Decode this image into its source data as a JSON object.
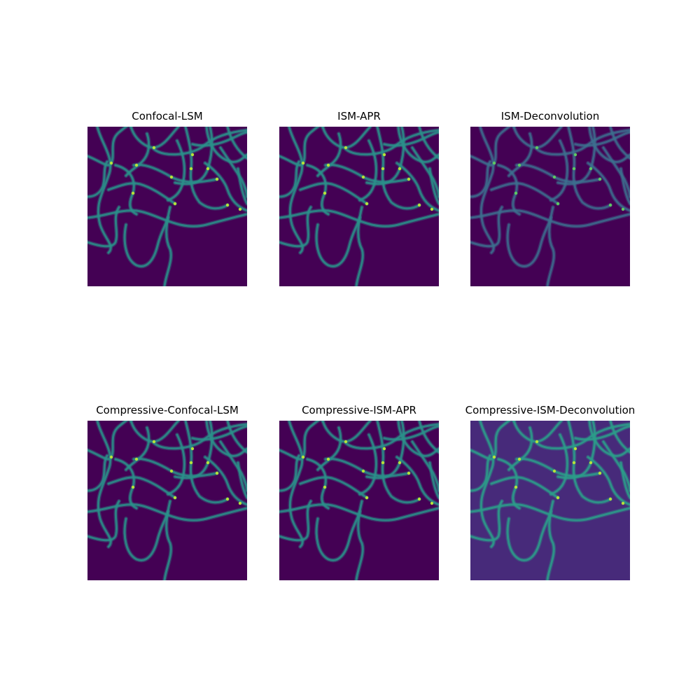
{
  "figure": {
    "panels": [
      {
        "title": "Confocal-LSM",
        "background": "#440154",
        "line_color": "#2a8f8a",
        "line_opacity": 0.85,
        "highlight": "#b6e33a"
      },
      {
        "title": "ISM-APR",
        "background": "#440154",
        "line_color": "#2a8f8a",
        "line_opacity": 0.85,
        "highlight": "#b6e33a"
      },
      {
        "title": "ISM-Deconvolution",
        "background": "#440154",
        "line_color": "#3c6f8f",
        "line_opacity": 0.8,
        "highlight": "#5ec962"
      },
      {
        "title": "Compressive-Confocal-LSM",
        "background": "#440154",
        "line_color": "#2a8f8a",
        "line_opacity": 0.85,
        "highlight": "#b6e33a"
      },
      {
        "title": "Compressive-ISM-APR",
        "background": "#440154",
        "line_color": "#2a8f8a",
        "line_opacity": 0.85,
        "highlight": "#b6e33a"
      },
      {
        "title": "Compressive-ISM-Deconvolution",
        "background": "#472a7a",
        "line_color": "#2c9c8a",
        "line_opacity": 0.85,
        "highlight": "#b6e33a"
      }
    ]
  }
}
